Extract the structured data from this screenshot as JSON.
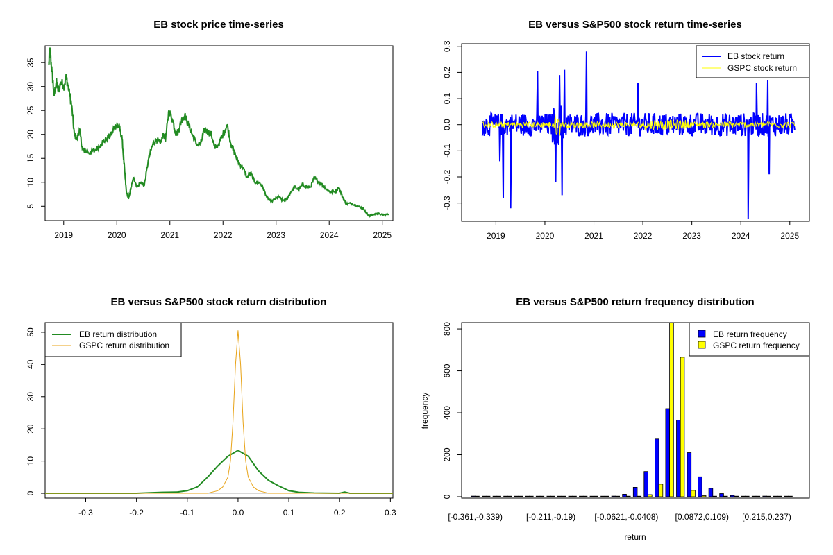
{
  "chart_data": [
    {
      "type": "line",
      "title": "EB stock price time-series",
      "xlabel": "",
      "ylabel": "",
      "x_ticks": [
        "2019",
        "2020",
        "2021",
        "2022",
        "2023",
        "2024",
        "2025"
      ],
      "y_ticks": [
        "5",
        "10",
        "15",
        "20",
        "25",
        "30",
        "35"
      ],
      "ylim": [
        2,
        38.5
      ],
      "xlim": [
        2018.65,
        2025.2
      ],
      "color": "#228B22",
      "series": [
        {
          "x": [
            2018.72,
            2018.74,
            2018.78,
            2018.82,
            2018.86,
            2018.9,
            2018.95,
            2019.0,
            2019.05,
            2019.1,
            2019.15,
            2019.2,
            2019.25,
            2019.3,
            2019.35,
            2019.4,
            2019.5,
            2019.6,
            2019.7,
            2019.8,
            2019.9,
            2019.95,
            2020.0,
            2020.05,
            2020.1,
            2020.15,
            2020.18,
            2020.22,
            2020.27,
            2020.32,
            2020.38,
            2020.45,
            2020.52,
            2020.6,
            2020.68,
            2020.75,
            2020.82,
            2020.88,
            2020.92,
            2020.98,
            2021.05,
            2021.12,
            2021.17,
            2021.22,
            2021.28,
            2021.35,
            2021.42,
            2021.5,
            2021.58,
            2021.65,
            2021.72,
            2021.78,
            2021.85,
            2021.92,
            2022.0,
            2022.08,
            2022.15,
            2022.22,
            2022.3,
            2022.38,
            2022.45,
            2022.52,
            2022.6,
            2022.68,
            2022.75,
            2022.82,
            2022.9,
            2022.98,
            2023.05,
            2023.12,
            2023.2,
            2023.28,
            2023.35,
            2023.42,
            2023.5,
            2023.58,
            2023.65,
            2023.72,
            2023.8,
            2023.88,
            2023.95,
            2024.02,
            2024.1,
            2024.18,
            2024.25,
            2024.32,
            2024.4,
            2024.5,
            2024.58,
            2024.65,
            2024.7,
            2024.75,
            2024.82,
            2024.9,
            2024.98,
            2025.05,
            2025.12
          ],
          "y": [
            34.5,
            37.8,
            33,
            28,
            31,
            29,
            31,
            30,
            32,
            29,
            26,
            20,
            19,
            21,
            17,
            16.5,
            16.2,
            16.8,
            18,
            19,
            20,
            21.5,
            22,
            21.5,
            19,
            12,
            8,
            6.5,
            9,
            11,
            9,
            10,
            9.5,
            15,
            18,
            19,
            18,
            20,
            19,
            25,
            23,
            20,
            21,
            23,
            24,
            22,
            20,
            18,
            18,
            21,
            20.5,
            20,
            17,
            18,
            20,
            22,
            18,
            16,
            14,
            13,
            11,
            12,
            10,
            10,
            9,
            7,
            6,
            6.5,
            7,
            6.2,
            6.5,
            8,
            9,
            8.5,
            9.5,
            9,
            9,
            11,
            10,
            9.5,
            8.5,
            8,
            8,
            9,
            7,
            5.5,
            5.6,
            5.2,
            4.8,
            4.5,
            3.5,
            3,
            3.2,
            3.5,
            3.3,
            3.2,
            3.4
          ]
        }
      ]
    },
    {
      "type": "line",
      "title": "EB versus S&P500 stock return time-series",
      "xlabel": "",
      "ylabel": "",
      "x_ticks": [
        "2019",
        "2020",
        "2021",
        "2022",
        "2023",
        "2024",
        "2025"
      ],
      "y_ticks": [
        "-0.3",
        "-0.2",
        "-0.1",
        "0.0",
        "0.1",
        "0.2",
        "0.3"
      ],
      "ylim": [
        -0.37,
        0.31
      ],
      "xlim": [
        2018.3,
        2025.4
      ],
      "legend_position": "top-right",
      "series": [
        {
          "name": "EB stock return",
          "color": "#0000FF",
          "amplitude": 0.045
        },
        {
          "name": "GSPC stock return",
          "color": "#FFFF00",
          "amplitude": 0.012
        }
      ],
      "spikes": [
        {
          "x": 2019.15,
          "y": -0.28
        },
        {
          "x": 2019.3,
          "y": -0.32
        },
        {
          "x": 2019.08,
          "y": -0.14
        },
        {
          "x": 2019.85,
          "y": 0.205
        },
        {
          "x": 2020.22,
          "y": -0.22
        },
        {
          "x": 2020.3,
          "y": 0.19
        },
        {
          "x": 2020.35,
          "y": -0.27
        },
        {
          "x": 2020.4,
          "y": 0.21
        },
        {
          "x": 2020.85,
          "y": 0.28
        },
        {
          "x": 2021.9,
          "y": 0.16
        },
        {
          "x": 2024.15,
          "y": -0.36
        },
        {
          "x": 2024.32,
          "y": 0.16
        },
        {
          "x": 2024.58,
          "y": -0.19
        },
        {
          "x": 2024.55,
          "y": 0.17
        }
      ]
    },
    {
      "type": "line",
      "title": "EB versus S&P500 stock return distribution",
      "xlabel": "",
      "ylabel": "",
      "x_ticks": [
        "-0.3",
        "-0.2",
        "-0.1",
        "0.0",
        "0.1",
        "0.2",
        "0.3"
      ],
      "y_ticks": [
        "0",
        "10",
        "20",
        "30",
        "40",
        "50"
      ],
      "xlim": [
        -0.38,
        0.305
      ],
      "ylim": [
        -1.5,
        53
      ],
      "legend_position": "top-left",
      "series": [
        {
          "name": "EB return distribution",
          "color": "#228B22",
          "x": [
            -0.38,
            -0.2,
            -0.15,
            -0.12,
            -0.1,
            -0.08,
            -0.06,
            -0.04,
            -0.02,
            0.0,
            0.02,
            0.04,
            0.06,
            0.08,
            0.1,
            0.12,
            0.15,
            0.2,
            0.21,
            0.22,
            0.305
          ],
          "y": [
            0,
            0,
            0.3,
            0.4,
            0.8,
            2,
            5,
            8.5,
            11.5,
            13.3,
            11.5,
            7,
            4,
            2.3,
            0.8,
            0.3,
            0.1,
            0,
            0.4,
            0,
            0
          ]
        },
        {
          "name": "GSPC return distribution",
          "color": "#E8A317",
          "x": [
            -0.38,
            -0.06,
            -0.04,
            -0.03,
            -0.02,
            -0.015,
            -0.01,
            -0.005,
            0.0,
            0.005,
            0.01,
            0.015,
            0.02,
            0.03,
            0.04,
            0.06,
            0.305
          ],
          "y": [
            0,
            0,
            0.8,
            2,
            5,
            10,
            22,
            40,
            50.5,
            40,
            22,
            10,
            5,
            2,
            0.8,
            0,
            0
          ]
        }
      ]
    },
    {
      "type": "bar",
      "title": "EB versus S&P500 return frequency distribution",
      "xlabel": "return",
      "ylabel": "frequency",
      "x_tick_labels": [
        "[-0.361,-0.339)",
        "[-0.211,-0.19)",
        "[-0.0621,-0.0408)",
        "[0.0872,0.109)",
        "[0.215,0.237)"
      ],
      "x_tick_bins": [
        0,
        7,
        14,
        21,
        27
      ],
      "y_ticks": [
        "0",
        "200",
        "400",
        "600",
        "800"
      ],
      "ylim": [
        0,
        830
      ],
      "legend_position": "top-right",
      "series": [
        {
          "name": "EB return frequency",
          "color": "#0000FF",
          "values": [
            3,
            2,
            2,
            2,
            1,
            1,
            2,
            2,
            1,
            1,
            1,
            1,
            2,
            3,
            12,
            45,
            120,
            275,
            420,
            365,
            210,
            95,
            40,
            15,
            6,
            2,
            2,
            3,
            2,
            2
          ]
        },
        {
          "name": "GSPC return frequency",
          "color": "#FFFF00",
          "values": [
            0,
            0,
            0,
            0,
            0,
            0,
            0,
            0,
            0,
            0,
            0,
            0,
            0,
            0,
            0,
            2,
            10,
            60,
            830,
            665,
            30,
            5,
            1,
            0,
            0,
            0,
            0,
            0,
            0,
            0
          ]
        }
      ]
    }
  ]
}
